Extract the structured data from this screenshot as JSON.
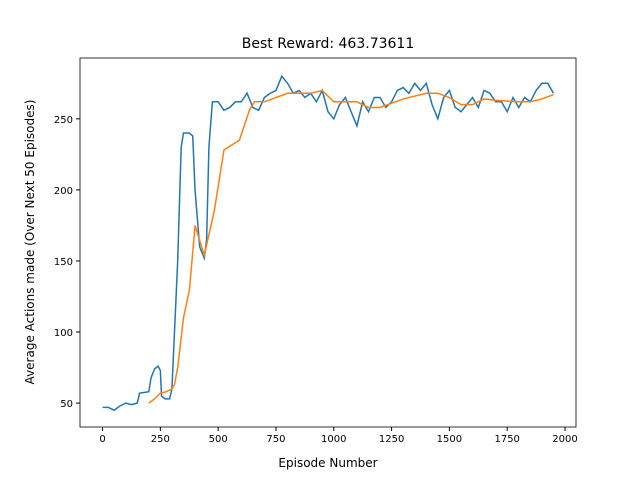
{
  "chart_data": {
    "type": "line",
    "title": "Best Reward:  463.73611",
    "x_label": "Episode Number",
    "y_label": "Average Actions made (Over Next 50 Episodes)",
    "xlim": [
      -97.5,
      2047.5
    ],
    "ylim": [
      33.2,
      292.8
    ],
    "xticks": [
      0,
      250,
      500,
      750,
      1000,
      1250,
      1500,
      1750,
      2000
    ],
    "yticks": [
      50,
      100,
      150,
      200,
      250
    ],
    "series": [
      {
        "color": "#1f77b4",
        "x": [
          0,
          25,
          50,
          75,
          100,
          125,
          150,
          160,
          200,
          210,
          225,
          240,
          250,
          255,
          270,
          290,
          300,
          325,
          340,
          350,
          375,
          390,
          400,
          420,
          440,
          450,
          460,
          475,
          500,
          525,
          550,
          575,
          600,
          625,
          650,
          675,
          700,
          725,
          750,
          775,
          800,
          825,
          850,
          875,
          900,
          925,
          950,
          975,
          1000,
          1025,
          1050,
          1075,
          1100,
          1125,
          1150,
          1175,
          1200,
          1225,
          1250,
          1275,
          1300,
          1325,
          1350,
          1375,
          1400,
          1425,
          1450,
          1475,
          1500,
          1525,
          1550,
          1575,
          1600,
          1625,
          1650,
          1675,
          1700,
          1725,
          1750,
          1775,
          1800,
          1825,
          1850,
          1875,
          1900,
          1925,
          1950
        ],
        "values": [
          47,
          47,
          45,
          48,
          50,
          49,
          50,
          57,
          58,
          68,
          74,
          76,
          73,
          55,
          53,
          53,
          60,
          150,
          230,
          240,
          240,
          238,
          200,
          160,
          152,
          165,
          230,
          262,
          262,
          256,
          258,
          262,
          262,
          268,
          258,
          256,
          265,
          268,
          270,
          280,
          275,
          268,
          270,
          265,
          268,
          262,
          270,
          255,
          250,
          260,
          265,
          255,
          245,
          262,
          255,
          265,
          265,
          258,
          262,
          270,
          272,
          268,
          275,
          270,
          275,
          260,
          250,
          265,
          270,
          258,
          255,
          260,
          265,
          258,
          270,
          268,
          262,
          262,
          255,
          265,
          258,
          265,
          262,
          270,
          275,
          275,
          268
        ]
      },
      {
        "color": "#ff7f0e",
        "x": [
          200,
          225,
          250,
          275,
          300,
          311,
          325,
          350,
          376,
          400,
          440,
          484,
          525,
          592,
          635,
          657,
          700,
          800,
          900,
          950,
          1000,
          1100,
          1150,
          1200,
          1300,
          1400,
          1450,
          1500,
          1550,
          1600,
          1650,
          1700,
          1800,
          1850,
          1900,
          1950
        ],
        "values": [
          50,
          53,
          57,
          58,
          60,
          63,
          75,
          110,
          130,
          175,
          154,
          186,
          228,
          235,
          256,
          262,
          262,
          268,
          268,
          270,
          262,
          262,
          258,
          258,
          264,
          268,
          268,
          265,
          260,
          260,
          264,
          263,
          262,
          262,
          264,
          267
        ]
      }
    ]
  }
}
